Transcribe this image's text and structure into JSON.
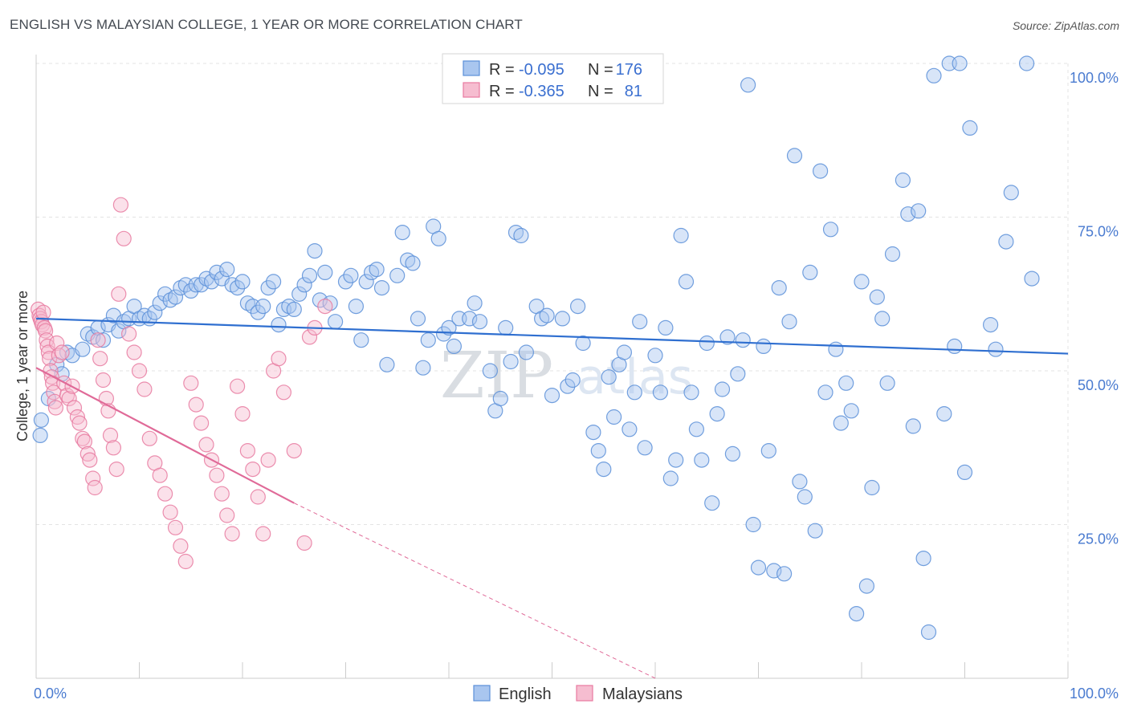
{
  "title": "ENGLISH VS MALAYSIAN COLLEGE, 1 YEAR OR MORE CORRELATION CHART",
  "source": "Source: ZipAtlas.com",
  "watermark": {
    "zip": "ZIP",
    "atlas": "atlas"
  },
  "colors": {
    "english": "#5b8fd8",
    "english_fill": "#a9c6ef",
    "malaysian": "#e87aa0",
    "malaysian_fill": "#f6bdd0",
    "english_line": "#2f6fd0",
    "malaysian_line": "#e06a98"
  },
  "legend": {
    "rows": [
      {
        "r_label": "R =",
        "r_value": "-0.095",
        "n_label": "N =",
        "n_value": "176"
      },
      {
        "r_label": "R =",
        "r_value": "-0.365",
        "n_label": "N =",
        "n_value": "81"
      }
    ]
  },
  "bottom_legend": {
    "english": "English",
    "malaysians": "Malaysians"
  },
  "chart_data": {
    "type": "scatter",
    "ylabel": "College, 1 year or more",
    "x_tick_labels": [
      "0.0%",
      "100.0%"
    ],
    "y_tick_labels": [
      "25.0%",
      "50.0%",
      "75.0%",
      "100.0%"
    ],
    "xlim": [
      0,
      100
    ],
    "ylim": [
      0,
      100
    ],
    "grid": true,
    "series": [
      {
        "name": "English",
        "r": -0.095,
        "n": 176,
        "trend": {
          "x": [
            0,
            100
          ],
          "y": [
            58.5,
            52.8
          ]
        },
        "points": [
          [
            0.5,
            42
          ],
          [
            0.4,
            39.5
          ],
          [
            1.2,
            45.5
          ],
          [
            2,
            51
          ],
          [
            2.5,
            49.5
          ],
          [
            3,
            53
          ],
          [
            3.5,
            52.5
          ],
          [
            4.5,
            53.5
          ],
          [
            5,
            56
          ],
          [
            5.5,
            55.5
          ],
          [
            6,
            57
          ],
          [
            6.5,
            55
          ],
          [
            7,
            57.5
          ],
          [
            7.5,
            59
          ],
          [
            8,
            56.5
          ],
          [
            8.5,
            58
          ],
          [
            9,
            58.5
          ],
          [
            9.5,
            60.5
          ],
          [
            10,
            58.5
          ],
          [
            10.5,
            59
          ],
          [
            11,
            58.5
          ],
          [
            11.5,
            59.5
          ],
          [
            12,
            61
          ],
          [
            12.5,
            62.5
          ],
          [
            13,
            61.5
          ],
          [
            13.5,
            62
          ],
          [
            14,
            63.5
          ],
          [
            14.5,
            64
          ],
          [
            15,
            63
          ],
          [
            15.5,
            64
          ],
          [
            16,
            64
          ],
          [
            16.5,
            65
          ],
          [
            17,
            64.5
          ],
          [
            17.5,
            66
          ],
          [
            18,
            65
          ],
          [
            18.5,
            66.5
          ],
          [
            19,
            64
          ],
          [
            19.5,
            63.5
          ],
          [
            20,
            64.5
          ],
          [
            20.5,
            61
          ],
          [
            21,
            60.5
          ],
          [
            21.5,
            59.5
          ],
          [
            22,
            60.5
          ],
          [
            22.5,
            63.5
          ],
          [
            23,
            64.5
          ],
          [
            23.5,
            57.5
          ],
          [
            24,
            60
          ],
          [
            24.5,
            60.5
          ],
          [
            25,
            60
          ],
          [
            25.5,
            62.5
          ],
          [
            26,
            64
          ],
          [
            26.5,
            65.5
          ],
          [
            27,
            69.5
          ],
          [
            27.5,
            61.5
          ],
          [
            28,
            66
          ],
          [
            28.5,
            61
          ],
          [
            29,
            58
          ],
          [
            30,
            64.5
          ],
          [
            30.5,
            65.5
          ],
          [
            31,
            60.5
          ],
          [
            31.5,
            55
          ],
          [
            32,
            64.5
          ],
          [
            32.5,
            66
          ],
          [
            33,
            66.5
          ],
          [
            33.5,
            63.5
          ],
          [
            34,
            51
          ],
          [
            35,
            65.5
          ],
          [
            35.5,
            72.5
          ],
          [
            36,
            68
          ],
          [
            36.5,
            67.5
          ],
          [
            37,
            58.5
          ],
          [
            37.5,
            50.5
          ],
          [
            38,
            55
          ],
          [
            38.5,
            73.5
          ],
          [
            39,
            71.5
          ],
          [
            39.5,
            56
          ],
          [
            40,
            57
          ],
          [
            40.5,
            54
          ],
          [
            41,
            58.5
          ],
          [
            42,
            58.5
          ],
          [
            42.5,
            61
          ],
          [
            43,
            58
          ],
          [
            44,
            50
          ],
          [
            44.5,
            43.5
          ],
          [
            45,
            45.5
          ],
          [
            45.5,
            57
          ],
          [
            46,
            51.5
          ],
          [
            46.5,
            72.5
          ],
          [
            47,
            72
          ],
          [
            47.5,
            53
          ],
          [
            48.5,
            60.5
          ],
          [
            49,
            58.5
          ],
          [
            49.5,
            59
          ],
          [
            50,
            46
          ],
          [
            51,
            58.5
          ],
          [
            51.5,
            47.5
          ],
          [
            52,
            48.5
          ],
          [
            52.5,
            60.5
          ],
          [
            53,
            54.5
          ],
          [
            54,
            40
          ],
          [
            54.5,
            37
          ],
          [
            55,
            34
          ],
          [
            55.5,
            49
          ],
          [
            56,
            42.5
          ],
          [
            56.5,
            51
          ],
          [
            57,
            53
          ],
          [
            57.5,
            40.5
          ],
          [
            58,
            46.5
          ],
          [
            58.5,
            58
          ],
          [
            59,
            37.5
          ],
          [
            60,
            52.5
          ],
          [
            60.5,
            46.5
          ],
          [
            61,
            57
          ],
          [
            61.5,
            32.5
          ],
          [
            62,
            35.5
          ],
          [
            62.5,
            72
          ],
          [
            63,
            64.5
          ],
          [
            63.5,
            46.5
          ],
          [
            64,
            40.5
          ],
          [
            64.5,
            35.5
          ],
          [
            65,
            54.5
          ],
          [
            65.5,
            28.5
          ],
          [
            66,
            43
          ],
          [
            66.5,
            47
          ],
          [
            67,
            55.5
          ],
          [
            67.5,
            36.5
          ],
          [
            68,
            49.5
          ],
          [
            68.5,
            55
          ],
          [
            69,
            96.5
          ],
          [
            69.5,
            25
          ],
          [
            70,
            18
          ],
          [
            70.5,
            54
          ],
          [
            71,
            37
          ],
          [
            71.5,
            17.5
          ],
          [
            72,
            63.5
          ],
          [
            72.5,
            17
          ],
          [
            73,
            58
          ],
          [
            73.5,
            85
          ],
          [
            74,
            32
          ],
          [
            74.5,
            29.5
          ],
          [
            75,
            66
          ],
          [
            75.5,
            24
          ],
          [
            76,
            82.5
          ],
          [
            76.5,
            46.5
          ],
          [
            77,
            73
          ],
          [
            77.5,
            53.5
          ],
          [
            78,
            41.5
          ],
          [
            78.5,
            48
          ],
          [
            79,
            43.5
          ],
          [
            79.5,
            10.5
          ],
          [
            80,
            64.5
          ],
          [
            80.5,
            15
          ],
          [
            81,
            31
          ],
          [
            81.5,
            62
          ],
          [
            82,
            58.5
          ],
          [
            82.5,
            48
          ],
          [
            83,
            69
          ],
          [
            84,
            81
          ],
          [
            84.5,
            75.5
          ],
          [
            85,
            41
          ],
          [
            85.5,
            76
          ],
          [
            86,
            19.5
          ],
          [
            86.5,
            7.5
          ],
          [
            87,
            98
          ],
          [
            88,
            43
          ],
          [
            88.5,
            100
          ],
          [
            89,
            54
          ],
          [
            89.5,
            100
          ],
          [
            90,
            33.5
          ],
          [
            90.5,
            89.5
          ],
          [
            92.5,
            57.5
          ],
          [
            93,
            53.5
          ],
          [
            94,
            71
          ],
          [
            94.5,
            79
          ],
          [
            96,
            100
          ],
          [
            96.5,
            65
          ]
        ]
      },
      {
        "name": "Malaysians",
        "r": -0.365,
        "n": 81,
        "trend": {
          "x": [
            0,
            25
          ],
          "y": [
            50.5,
            28.5
          ]
        },
        "trend_extension": {
          "x": [
            25,
            60
          ],
          "y": [
            28.5,
            0
          ]
        },
        "points": [
          [
            0.2,
            60
          ],
          [
            0.3,
            59
          ],
          [
            0.4,
            58.5
          ],
          [
            0.5,
            58
          ],
          [
            0.6,
            57.5
          ],
          [
            0.7,
            59.5
          ],
          [
            0.8,
            57
          ],
          [
            0.9,
            56.5
          ],
          [
            1,
            55
          ],
          [
            1.1,
            54
          ],
          [
            1.2,
            53
          ],
          [
            1.3,
            52
          ],
          [
            1.4,
            50
          ],
          [
            1.5,
            49
          ],
          [
            1.6,
            48
          ],
          [
            1.7,
            46.5
          ],
          [
            1.8,
            45
          ],
          [
            1.9,
            44
          ],
          [
            2,
            54.5
          ],
          [
            2.2,
            52.5
          ],
          [
            2.5,
            53
          ],
          [
            2.7,
            48
          ],
          [
            3,
            46
          ],
          [
            3.2,
            45.5
          ],
          [
            3.5,
            47.5
          ],
          [
            3.7,
            44
          ],
          [
            4,
            42.5
          ],
          [
            4.2,
            41.5
          ],
          [
            4.5,
            39
          ],
          [
            4.7,
            38.5
          ],
          [
            5,
            36.5
          ],
          [
            5.2,
            35.5
          ],
          [
            5.5,
            32.5
          ],
          [
            5.7,
            31
          ],
          [
            6,
            55
          ],
          [
            6.2,
            52
          ],
          [
            6.5,
            48.5
          ],
          [
            6.8,
            45.5
          ],
          [
            7,
            43.5
          ],
          [
            7.2,
            39.5
          ],
          [
            7.5,
            37.5
          ],
          [
            7.8,
            34
          ],
          [
            8,
            62.5
          ],
          [
            8.2,
            77
          ],
          [
            8.5,
            71.5
          ],
          [
            9,
            56
          ],
          [
            9.5,
            53
          ],
          [
            10,
            50
          ],
          [
            10.5,
            47
          ],
          [
            11,
            39
          ],
          [
            11.5,
            35
          ],
          [
            12,
            33
          ],
          [
            12.5,
            30
          ],
          [
            13,
            27
          ],
          [
            13.5,
            24.5
          ],
          [
            14,
            21.5
          ],
          [
            14.5,
            19
          ],
          [
            15,
            48
          ],
          [
            15.5,
            44.5
          ],
          [
            16,
            41.5
          ],
          [
            16.5,
            38
          ],
          [
            17,
            35.5
          ],
          [
            17.5,
            33
          ],
          [
            18,
            30
          ],
          [
            18.5,
            26.5
          ],
          [
            19,
            23.5
          ],
          [
            19.5,
            47.5
          ],
          [
            20,
            43
          ],
          [
            20.5,
            37
          ],
          [
            21,
            34
          ],
          [
            21.5,
            29.5
          ],
          [
            22,
            23.5
          ],
          [
            22.5,
            35.5
          ],
          [
            23,
            50
          ],
          [
            23.5,
            52
          ],
          [
            24,
            46.5
          ],
          [
            25,
            37
          ],
          [
            26,
            22
          ],
          [
            26.5,
            55.5
          ],
          [
            27,
            57
          ],
          [
            28,
            60.5
          ]
        ]
      }
    ]
  }
}
